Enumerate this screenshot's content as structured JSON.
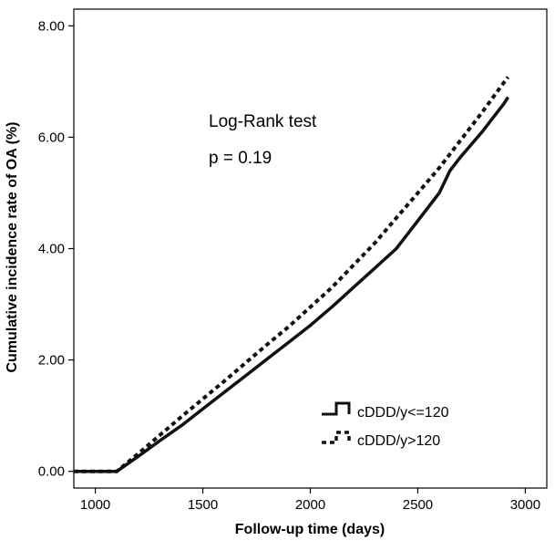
{
  "chart_data": {
    "type": "line",
    "title": "",
    "xlabel": "Follow-up time (days)",
    "ylabel": "Cumulative incidence rate of OA (%)",
    "xlim": [
      900,
      3100
    ],
    "ylim": [
      -0.3,
      8.3
    ],
    "x_ticks": [
      1000,
      1500,
      2000,
      2500,
      3000
    ],
    "y_ticks": [
      0,
      2,
      4,
      6,
      8
    ],
    "x_tick_labels": [
      "1000",
      "1500",
      "2000",
      "2500",
      "3000"
    ],
    "y_tick_labels": [
      "0.00",
      "2.00",
      "4.00",
      "6.00",
      "8.00"
    ],
    "grid": false,
    "legend_position": "bottom-right",
    "annotations": [
      "Log-Rank test",
      "p = 0.19"
    ],
    "series": [
      {
        "name": "cDDD/y<=120",
        "style": "solid",
        "color": "#111111",
        "x": [
          900,
          1100,
          1200,
          1300,
          1400,
          1500,
          1600,
          1700,
          1800,
          1900,
          2000,
          2100,
          2200,
          2300,
          2400,
          2500,
          2600,
          2650,
          2700,
          2800,
          2900,
          2920
        ],
        "y": [
          0,
          0,
          0.27,
          0.55,
          0.82,
          1.12,
          1.42,
          1.72,
          2.02,
          2.32,
          2.62,
          2.95,
          3.3,
          3.65,
          4.0,
          4.5,
          5.0,
          5.4,
          5.65,
          6.1,
          6.6,
          6.72
        ]
      },
      {
        "name": "cDDD/y>120",
        "style": "dashed",
        "color": "#111111",
        "x": [
          900,
          1100,
          1200,
          1300,
          1400,
          1500,
          1600,
          1700,
          1800,
          1900,
          2000,
          2100,
          2200,
          2300,
          2400,
          2500,
          2600,
          2700,
          2800,
          2900,
          2920
        ],
        "y": [
          0,
          0,
          0.32,
          0.65,
          0.98,
          1.3,
          1.62,
          1.95,
          2.28,
          2.6,
          2.95,
          3.3,
          3.7,
          4.1,
          4.55,
          5.0,
          5.45,
          5.95,
          6.45,
          6.98,
          7.08
        ]
      }
    ]
  }
}
